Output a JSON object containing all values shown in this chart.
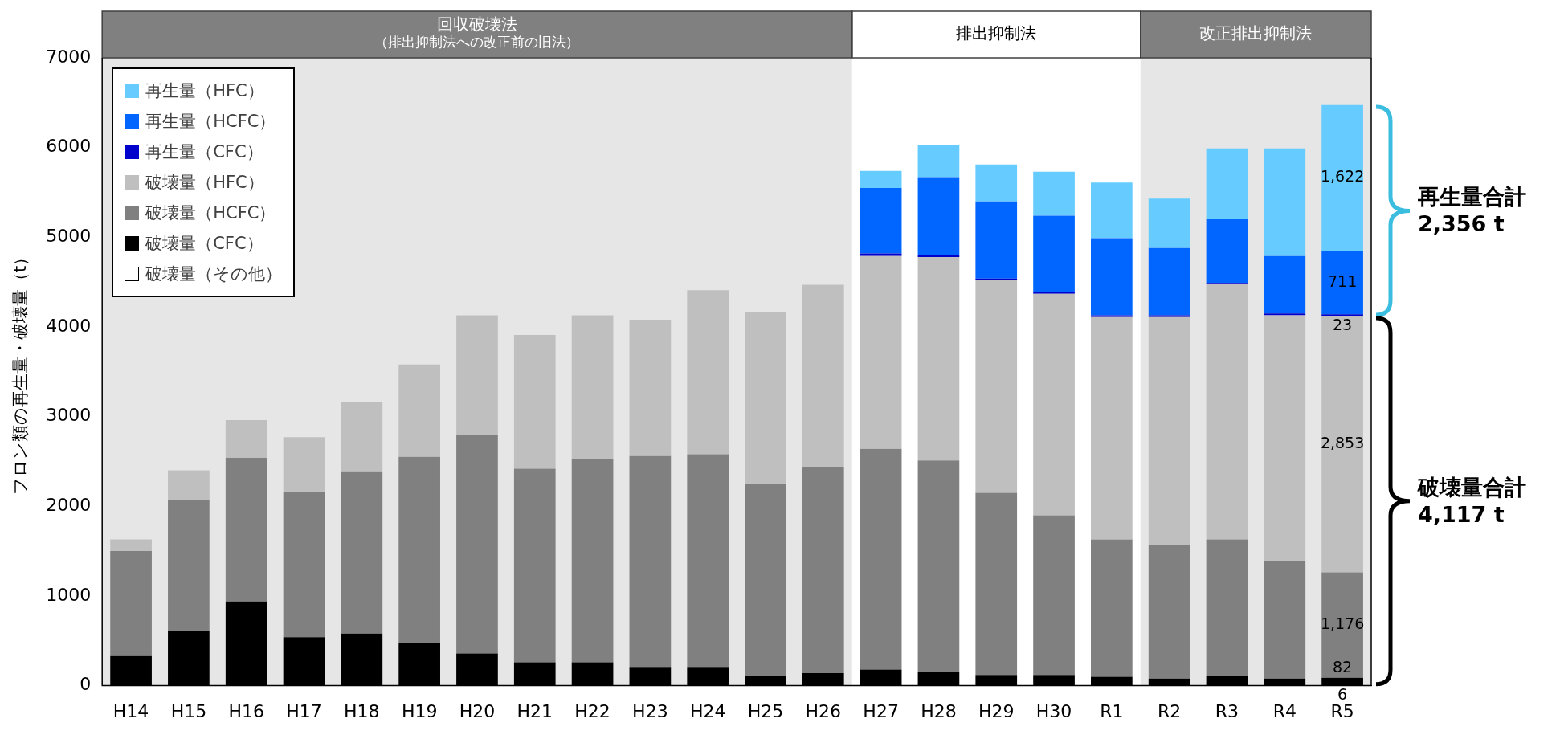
{
  "chart_data": {
    "type": "bar",
    "stacked": true,
    "ylabel": "フロン類の再生量・破壊量（t）",
    "categories": [
      "H14",
      "H15",
      "H16",
      "H17",
      "H18",
      "H19",
      "H20",
      "H21",
      "H22",
      "H23",
      "H24",
      "H25",
      "H26",
      "H27",
      "H28",
      "H29",
      "H30",
      "R1",
      "R2",
      "R3",
      "R4",
      "R5"
    ],
    "ylim": [
      0,
      7000
    ],
    "yticks": [
      0,
      1000,
      2000,
      3000,
      4000,
      5000,
      6000,
      7000
    ],
    "grid": false,
    "legend": "top left",
    "series": [
      {
        "name": "破壊量（その他）",
        "color": "#ffffff",
        "values": [
          null,
          null,
          null,
          null,
          null,
          null,
          null,
          null,
          null,
          null,
          null,
          null,
          null,
          null,
          null,
          null,
          null,
          null,
          null,
          null,
          null,
          6
        ],
        "value_labels": [
          null,
          null,
          null,
          null,
          null,
          null,
          null,
          null,
          null,
          null,
          null,
          null,
          null,
          null,
          null,
          null,
          null,
          null,
          null,
          null,
          null,
          "6"
        ]
      },
      {
        "name": "破壊量（CFC）",
        "color": "#000000",
        "values": [
          330,
          610,
          940,
          540,
          580,
          470,
          360,
          260,
          260,
          210,
          210,
          110,
          140,
          180,
          150,
          120,
          120,
          100,
          80,
          110,
          80,
          82
        ],
        "value_labels": [
          null,
          null,
          null,
          null,
          null,
          null,
          null,
          null,
          null,
          null,
          null,
          null,
          null,
          null,
          null,
          null,
          null,
          null,
          null,
          null,
          null,
          "82"
        ]
      },
      {
        "name": "破壊量（HCFC）",
        "color": "#808080",
        "values": [
          1170,
          1460,
          1600,
          1620,
          1810,
          2080,
          2430,
          2160,
          2270,
          2350,
          2370,
          2140,
          2300,
          2460,
          2360,
          2030,
          1780,
          1530,
          1490,
          1520,
          1310,
          1176
        ],
        "value_labels": [
          null,
          null,
          null,
          null,
          null,
          null,
          null,
          null,
          null,
          null,
          null,
          null,
          null,
          null,
          null,
          null,
          null,
          null,
          null,
          null,
          null,
          "1,176"
        ]
      },
      {
        "name": "破壊量（HFC）",
        "color": "#bfbfbf",
        "values": [
          130,
          330,
          420,
          610,
          770,
          1030,
          1340,
          1490,
          1600,
          1520,
          1830,
          1920,
          2030,
          2150,
          2270,
          2370,
          2470,
          2480,
          2540,
          2850,
          2740,
          2853
        ],
        "value_labels": [
          null,
          null,
          null,
          null,
          null,
          null,
          null,
          null,
          null,
          null,
          null,
          null,
          null,
          null,
          null,
          null,
          null,
          null,
          null,
          null,
          null,
          "2,853"
        ]
      },
      {
        "name": "再生量（CFC）",
        "color": "#0000cc",
        "values": [
          null,
          null,
          null,
          null,
          null,
          null,
          null,
          null,
          null,
          null,
          null,
          null,
          null,
          30,
          20,
          20,
          20,
          20,
          20,
          10,
          20,
          23
        ],
        "value_labels": [
          null,
          null,
          null,
          null,
          null,
          null,
          null,
          null,
          null,
          null,
          null,
          null,
          null,
          null,
          null,
          null,
          null,
          null,
          null,
          null,
          null,
          "23"
        ]
      },
      {
        "name": "再生量（HCFC）",
        "color": "#0066ff",
        "values": [
          null,
          null,
          null,
          null,
          null,
          null,
          null,
          null,
          null,
          null,
          null,
          null,
          null,
          730,
          870,
          860,
          850,
          860,
          750,
          710,
          640,
          711
        ],
        "value_labels": [
          null,
          null,
          null,
          null,
          null,
          null,
          null,
          null,
          null,
          null,
          null,
          null,
          null,
          null,
          null,
          null,
          null,
          null,
          null,
          null,
          null,
          "711"
        ]
      },
      {
        "name": "再生量（HFC）",
        "color": "#66ccff",
        "values": [
          null,
          null,
          null,
          null,
          null,
          null,
          null,
          null,
          null,
          null,
          null,
          null,
          null,
          190,
          360,
          410,
          490,
          620,
          550,
          790,
          1200,
          1622
        ],
        "value_labels": [
          null,
          null,
          null,
          null,
          null,
          null,
          null,
          null,
          null,
          null,
          null,
          null,
          null,
          null,
          null,
          null,
          null,
          null,
          null,
          null,
          null,
          "1,622"
        ]
      }
    ],
    "bands": [
      {
        "axis": "x",
        "from": "H14",
        "to": "H26",
        "label": "回収破壊法（排出抑制法への改正前の旧法）",
        "color": "#e6e6e6"
      },
      {
        "axis": "x",
        "from": "R2",
        "to": "R5",
        "label": "改正排出抑制法",
        "color": "#e6e6e6"
      }
    ],
    "annotations": [
      "排出抑制法",
      "再生量合計\n2,356 t",
      "破壊量合計\n4,117 t"
    ]
  }
}
